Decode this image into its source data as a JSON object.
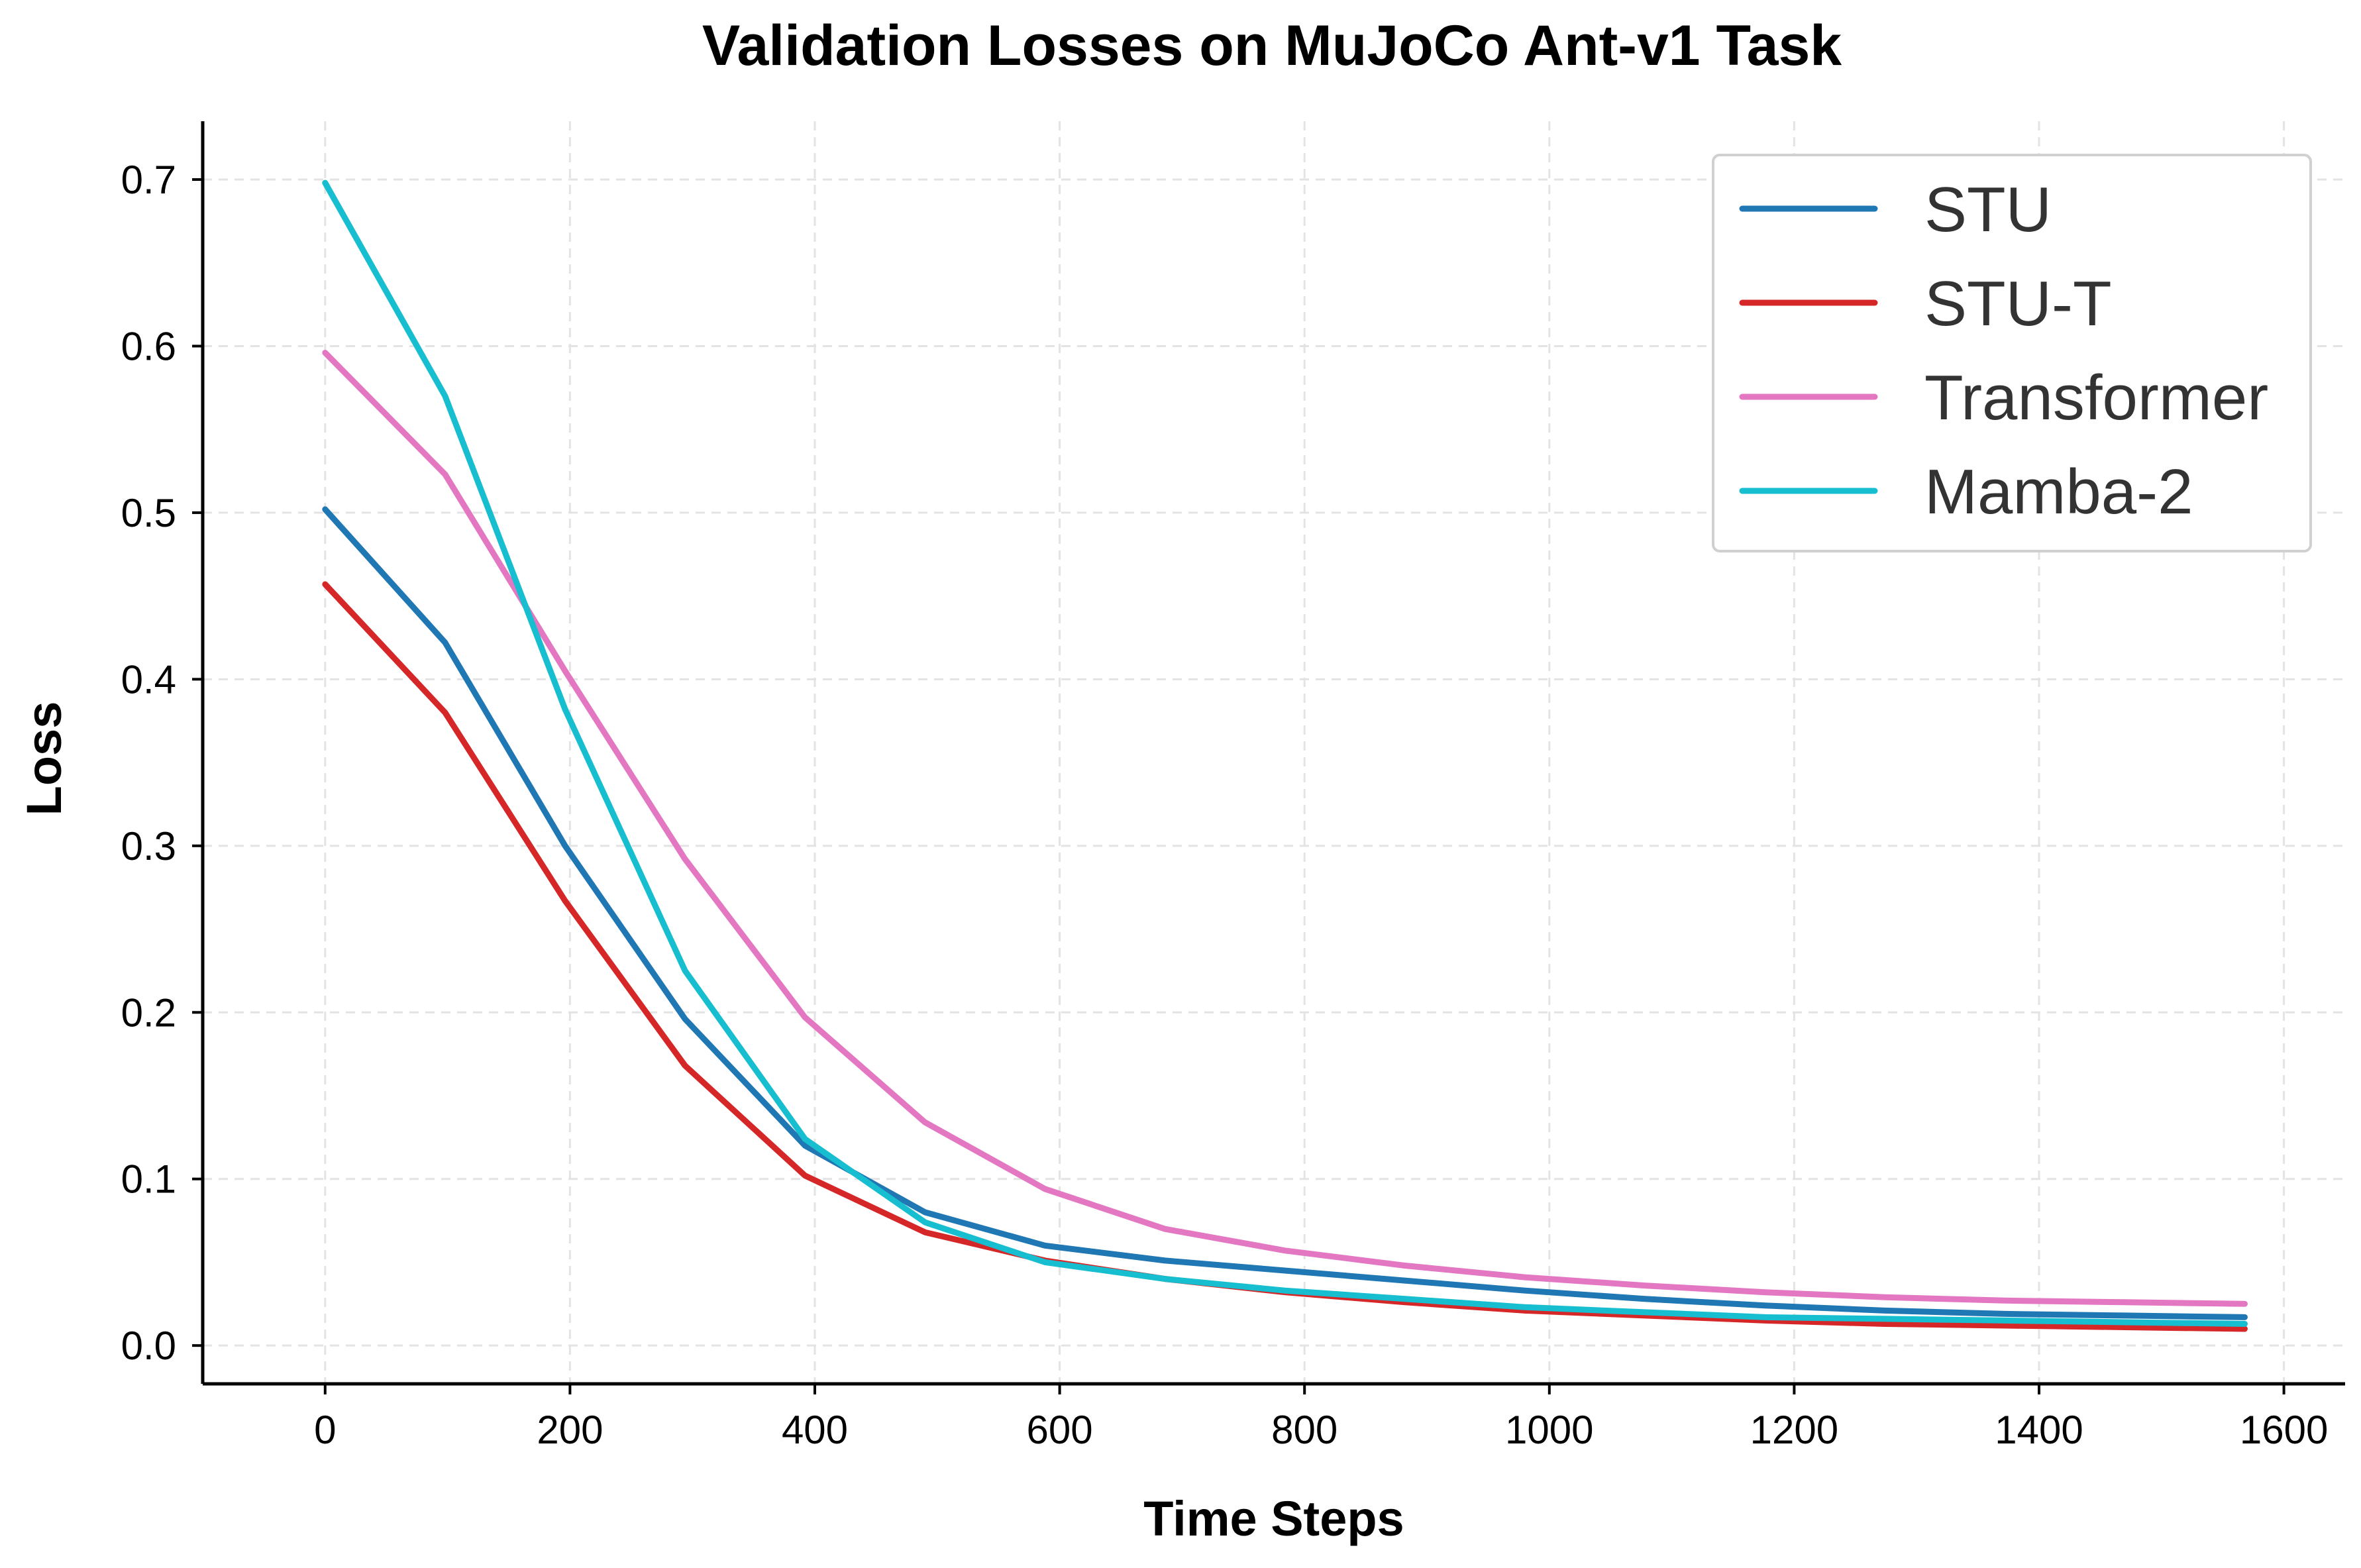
{
  "chart_data": {
    "type": "line",
    "title": "Validation Losses on MuJoCo Ant-v1 Task",
    "xlabel": "Time Steps",
    "ylabel": "Loss",
    "xlim": [
      -100,
      1650
    ],
    "ylim": [
      -0.023,
      0.735
    ],
    "xticks": [
      0,
      200,
      400,
      600,
      800,
      1000,
      1200,
      1400,
      1600
    ],
    "yticks": [
      0.0,
      0.1,
      0.2,
      0.3,
      0.4,
      0.5,
      0.6,
      0.7
    ],
    "ytick_labels": [
      "0.0",
      "0.1",
      "0.2",
      "0.3",
      "0.4",
      "0.5",
      "0.6",
      "0.7"
    ],
    "grid": true,
    "legend_position": "top-right",
    "x": [
      0,
      98,
      196,
      294,
      392,
      490,
      588,
      686,
      784,
      882,
      980,
      1078,
      1176,
      1274,
      1372,
      1470,
      1568
    ],
    "series": [
      {
        "name": "STU",
        "color": "#1f77b4",
        "values": [
          0.502,
          0.422,
          0.3,
          0.196,
          0.12,
          0.08,
          0.06,
          0.051,
          0.045,
          0.039,
          0.033,
          0.028,
          0.024,
          0.021,
          0.019,
          0.018,
          0.017
        ]
      },
      {
        "name": "STU-T",
        "color": "#d62728",
        "values": [
          0.457,
          0.38,
          0.267,
          0.168,
          0.102,
          0.068,
          0.051,
          0.04,
          0.032,
          0.026,
          0.021,
          0.018,
          0.015,
          0.013,
          0.012,
          0.011,
          0.01
        ]
      },
      {
        "name": "Transformer",
        "color": "#e377c2",
        "values": [
          0.596,
          0.523,
          0.405,
          0.292,
          0.197,
          0.134,
          0.094,
          0.07,
          0.057,
          0.048,
          0.041,
          0.036,
          0.032,
          0.029,
          0.027,
          0.026,
          0.025
        ]
      },
      {
        "name": "Mamba-2",
        "color": "#17becf",
        "values": [
          0.698,
          0.57,
          0.382,
          0.225,
          0.124,
          0.074,
          0.05,
          0.04,
          0.033,
          0.028,
          0.023,
          0.02,
          0.017,
          0.016,
          0.015,
          0.014,
          0.013
        ]
      }
    ]
  }
}
